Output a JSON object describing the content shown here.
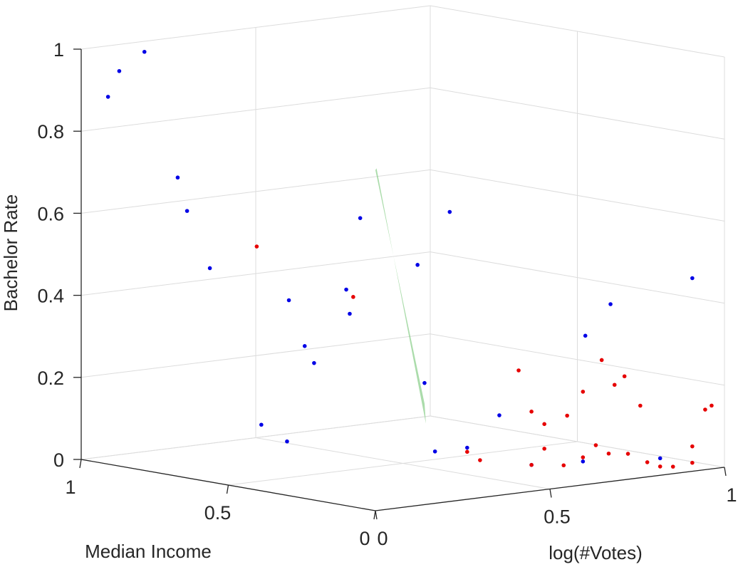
{
  "chart_data": {
    "type": "scatter3d",
    "title": "",
    "xlabel": "Median Income",
    "ylabel": "log(#Votes)",
    "zlabel": "Bachelor Rate",
    "xlim": [
      0,
      1
    ],
    "ylim": [
      0,
      1
    ],
    "zlim": [
      0,
      1
    ],
    "x_ticks": [
      "1",
      "0.5",
      "0"
    ],
    "y_ticks": [
      "1",
      "0.5",
      "0"
    ],
    "z_ticks": [
      "0",
      "0.2",
      "0.4",
      "0.6",
      "0.8",
      "1"
    ],
    "grid": true,
    "colors": {
      "blue": "#0000e6",
      "red": "#e60000",
      "surface": "#8fd08f",
      "grid": "#dcdcdc",
      "axis": "#262626"
    },
    "surface": {
      "name": "",
      "corners": [
        {
          "x": 0.92,
          "y": 0.92,
          "z": 0.0
        },
        {
          "x": 0.96,
          "y": 0.95,
          "z": 0.04
        },
        {
          "x": 0.0,
          "y": 0.0,
          "z": 0.83
        },
        {
          "x": 0.02,
          "y": 0.02,
          "z": 0.83
        }
      ]
    },
    "series": [
      {
        "color": "blue",
        "points": [
          [
            0.93,
            0.05,
            0.95
          ],
          [
            0.98,
            0.06,
            0.88
          ],
          [
            0.88,
            0.08,
            1.0
          ],
          [
            0.85,
            0.15,
            0.69
          ],
          [
            0.83,
            0.16,
            0.61
          ],
          [
            0.8,
            0.2,
            0.47
          ],
          [
            0.65,
            0.3,
            0.4
          ],
          [
            0.62,
            0.32,
            0.29
          ],
          [
            0.6,
            0.33,
            0.25
          ],
          [
            0.72,
            0.28,
            0.09
          ],
          [
            0.68,
            0.32,
            0.05
          ],
          [
            0.55,
            0.42,
            0.6
          ],
          [
            0.55,
            0.38,
            0.43
          ],
          [
            0.55,
            0.39,
            0.37
          ],
          [
            0.45,
            0.5,
            0.49
          ],
          [
            0.4,
            0.55,
            0.62
          ],
          [
            0.45,
            0.52,
            0.2
          ],
          [
            0.35,
            0.65,
            0.12
          ],
          [
            0.45,
            0.55,
            0.03
          ],
          [
            0.4,
            0.6,
            0.04
          ],
          [
            0.2,
            0.77,
            0.32
          ],
          [
            0.15,
            0.8,
            0.4
          ],
          [
            0.05,
            0.95,
            0.46
          ],
          [
            0.3,
            0.7,
            0.0
          ],
          [
            0.22,
            0.78,
            0.01
          ],
          [
            0.1,
            0.9,
            0.02
          ]
        ]
      },
      {
        "color": "red",
        "points": [
          [
            0.7,
            0.25,
            0.53
          ],
          [
            0.55,
            0.4,
            0.41
          ],
          [
            0.4,
            0.6,
            0.03
          ],
          [
            0.38,
            0.62,
            0.01
          ],
          [
            0.32,
            0.68,
            0.23
          ],
          [
            0.3,
            0.7,
            0.13
          ],
          [
            0.28,
            0.72,
            0.1
          ],
          [
            0.22,
            0.78,
            0.18
          ],
          [
            0.18,
            0.8,
            0.26
          ],
          [
            0.16,
            0.82,
            0.2
          ],
          [
            0.15,
            0.84,
            0.22
          ],
          [
            0.12,
            0.86,
            0.15
          ],
          [
            0.25,
            0.76,
            0.12
          ],
          [
            0.2,
            0.8,
            0.05
          ],
          [
            0.18,
            0.82,
            0.03
          ],
          [
            0.15,
            0.85,
            0.03
          ],
          [
            0.12,
            0.88,
            0.01
          ],
          [
            0.08,
            0.92,
            0.0
          ],
          [
            0.05,
            0.95,
            0.01
          ],
          [
            0.3,
            0.7,
            0.0
          ],
          [
            0.25,
            0.75,
            0.0
          ],
          [
            0.02,
            0.98,
            0.15
          ],
          [
            0.03,
            0.97,
            0.14
          ],
          [
            0.05,
            0.95,
            0.05
          ],
          [
            0.28,
            0.72,
            0.04
          ],
          [
            0.22,
            0.78,
            0.02
          ],
          [
            0.1,
            0.9,
            0.0
          ]
        ]
      }
    ]
  }
}
